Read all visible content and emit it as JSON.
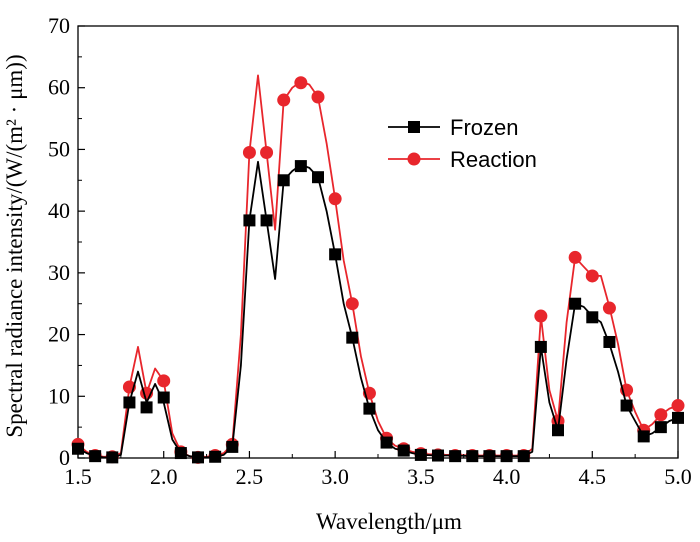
{
  "chart_data": {
    "type": "line",
    "xlabel": "Wavelength/μm",
    "ylabel": "Spectral radiance intensity/(W/(m² · μm))",
    "xlim": [
      1.5,
      5.0
    ],
    "ylim": [
      0,
      70
    ],
    "xticks": [
      1.5,
      2.0,
      2.5,
      3.0,
      3.5,
      4.0,
      4.5,
      5.0
    ],
    "xtick_labels": [
      "1.5",
      "2.0",
      "2.5",
      "3.0",
      "3.5",
      "4.0",
      "4.5",
      "5.0"
    ],
    "yticks": [
      0,
      10,
      20,
      30,
      40,
      50,
      60,
      70
    ],
    "ytick_labels": [
      "0",
      "10",
      "20",
      "30",
      "40",
      "50",
      "60",
      "70"
    ],
    "legend": {
      "placement": "upper-right"
    },
    "series": [
      {
        "name": "Frozen",
        "color": "#000000",
        "marker": "square",
        "line": {
          "x": [
            1.5,
            1.55,
            1.6,
            1.65,
            1.7,
            1.75,
            1.8,
            1.85,
            1.9,
            1.95,
            2.0,
            2.05,
            2.1,
            2.15,
            2.2,
            2.25,
            2.3,
            2.35,
            2.4,
            2.45,
            2.5,
            2.55,
            2.6,
            2.65,
            2.7,
            2.75,
            2.8,
            2.85,
            2.9,
            2.95,
            3.0,
            3.05,
            3.1,
            3.15,
            3.2,
            3.25,
            3.3,
            3.35,
            3.4,
            3.45,
            3.5,
            3.6,
            3.7,
            3.8,
            3.9,
            4.0,
            4.1,
            4.15,
            4.2,
            4.25,
            4.3,
            4.35,
            4.4,
            4.45,
            4.5,
            4.55,
            4.6,
            4.65,
            4.7,
            4.75,
            4.8,
            4.85,
            4.9,
            4.95,
            5.0
          ],
          "y": [
            1.5,
            0.8,
            0.3,
            0.1,
            0.1,
            0.5,
            9,
            14,
            9,
            12,
            9,
            3,
            0.8,
            0.3,
            0.1,
            0.1,
            0.2,
            0.5,
            1.8,
            15,
            38.5,
            48,
            38.5,
            29,
            45,
            46.5,
            47.5,
            47,
            45.5,
            40,
            33,
            25,
            19.5,
            13,
            8,
            4.5,
            2.5,
            1.5,
            1.2,
            0.8,
            0.5,
            0.4,
            0.4,
            0.3,
            0.3,
            0.3,
            0.3,
            1,
            18,
            9,
            4.5,
            16,
            25,
            24.5,
            23,
            22,
            18.5,
            14,
            8.5,
            6,
            3.5,
            4,
            5,
            6,
            6.5
          ]
        },
        "points": {
          "x": [
            1.5,
            1.6,
            1.7,
            1.8,
            1.9,
            2.0,
            2.1,
            2.2,
            2.3,
            2.4,
            2.5,
            2.6,
            2.7,
            2.8,
            2.9,
            3.0,
            3.1,
            3.2,
            3.3,
            3.4,
            3.5,
            3.6,
            3.7,
            3.8,
            3.9,
            4.0,
            4.1,
            4.2,
            4.3,
            4.4,
            4.5,
            4.6,
            4.7,
            4.8,
            4.9,
            5.0
          ],
          "y": [
            1.5,
            0.3,
            0.1,
            9,
            8.2,
            9.8,
            0.8,
            0.1,
            0.2,
            1.8,
            38.5,
            38.5,
            45,
            47.3,
            45.5,
            33,
            19.5,
            8,
            2.5,
            1.2,
            0.5,
            0.4,
            0.3,
            0.3,
            0.3,
            0.3,
            0.3,
            18,
            4.5,
            25,
            22.8,
            18.8,
            8.5,
            3.5,
            5,
            6.5
          ]
        }
      },
      {
        "name": "Reaction",
        "color": "#e8262c",
        "marker": "circle",
        "line": {
          "x": [
            1.5,
            1.55,
            1.6,
            1.65,
            1.7,
            1.75,
            1.8,
            1.85,
            1.9,
            1.95,
            2.0,
            2.05,
            2.1,
            2.15,
            2.2,
            2.25,
            2.3,
            2.35,
            2.4,
            2.45,
            2.5,
            2.55,
            2.6,
            2.65,
            2.7,
            2.75,
            2.8,
            2.85,
            2.9,
            2.95,
            3.0,
            3.05,
            3.1,
            3.15,
            3.2,
            3.25,
            3.3,
            3.35,
            3.4,
            3.45,
            3.5,
            3.6,
            3.7,
            3.8,
            3.9,
            4.0,
            4.1,
            4.15,
            4.2,
            4.25,
            4.3,
            4.35,
            4.4,
            4.45,
            4.5,
            4.55,
            4.6,
            4.65,
            4.7,
            4.75,
            4.8,
            4.85,
            4.9,
            4.95,
            5.0
          ],
          "y": [
            2.2,
            1,
            0.4,
            0.2,
            0.2,
            0.8,
            11.5,
            18,
            10.5,
            14.5,
            12.5,
            4,
            1,
            0.3,
            0.1,
            0.2,
            0.4,
            0.8,
            2.2,
            20,
            49.5,
            62,
            49.5,
            37,
            58,
            60,
            61,
            60.5,
            58.5,
            51,
            42,
            32,
            25,
            16.5,
            10.5,
            6,
            3.2,
            2,
            1.5,
            1,
            0.7,
            0.5,
            0.5,
            0.4,
            0.4,
            0.4,
            0.4,
            1.5,
            23,
            11,
            6,
            22,
            32.5,
            31,
            29.5,
            29.5,
            24.5,
            18.5,
            11,
            7.5,
            4.5,
            5.5,
            7,
            8,
            8.5
          ]
        },
        "points": {
          "x": [
            1.5,
            1.6,
            1.7,
            1.8,
            1.9,
            2.0,
            2.1,
            2.2,
            2.3,
            2.4,
            2.5,
            2.6,
            2.7,
            2.8,
            2.9,
            3.0,
            3.1,
            3.2,
            3.3,
            3.4,
            3.5,
            3.6,
            3.7,
            3.8,
            3.9,
            4.0,
            4.1,
            4.2,
            4.3,
            4.4,
            4.5,
            4.6,
            4.7,
            4.8,
            4.9,
            5.0
          ],
          "y": [
            2.2,
            0.4,
            0.2,
            11.5,
            10.5,
            12.5,
            1,
            0.1,
            0.4,
            2.2,
            49.5,
            49.5,
            58,
            60.8,
            58.5,
            42,
            25,
            10.5,
            3.2,
            1.5,
            0.7,
            0.5,
            0.4,
            0.4,
            0.4,
            0.4,
            0.4,
            23,
            6,
            32.5,
            29.5,
            24.3,
            11,
            4.5,
            7,
            8.5
          ]
        }
      }
    ]
  }
}
